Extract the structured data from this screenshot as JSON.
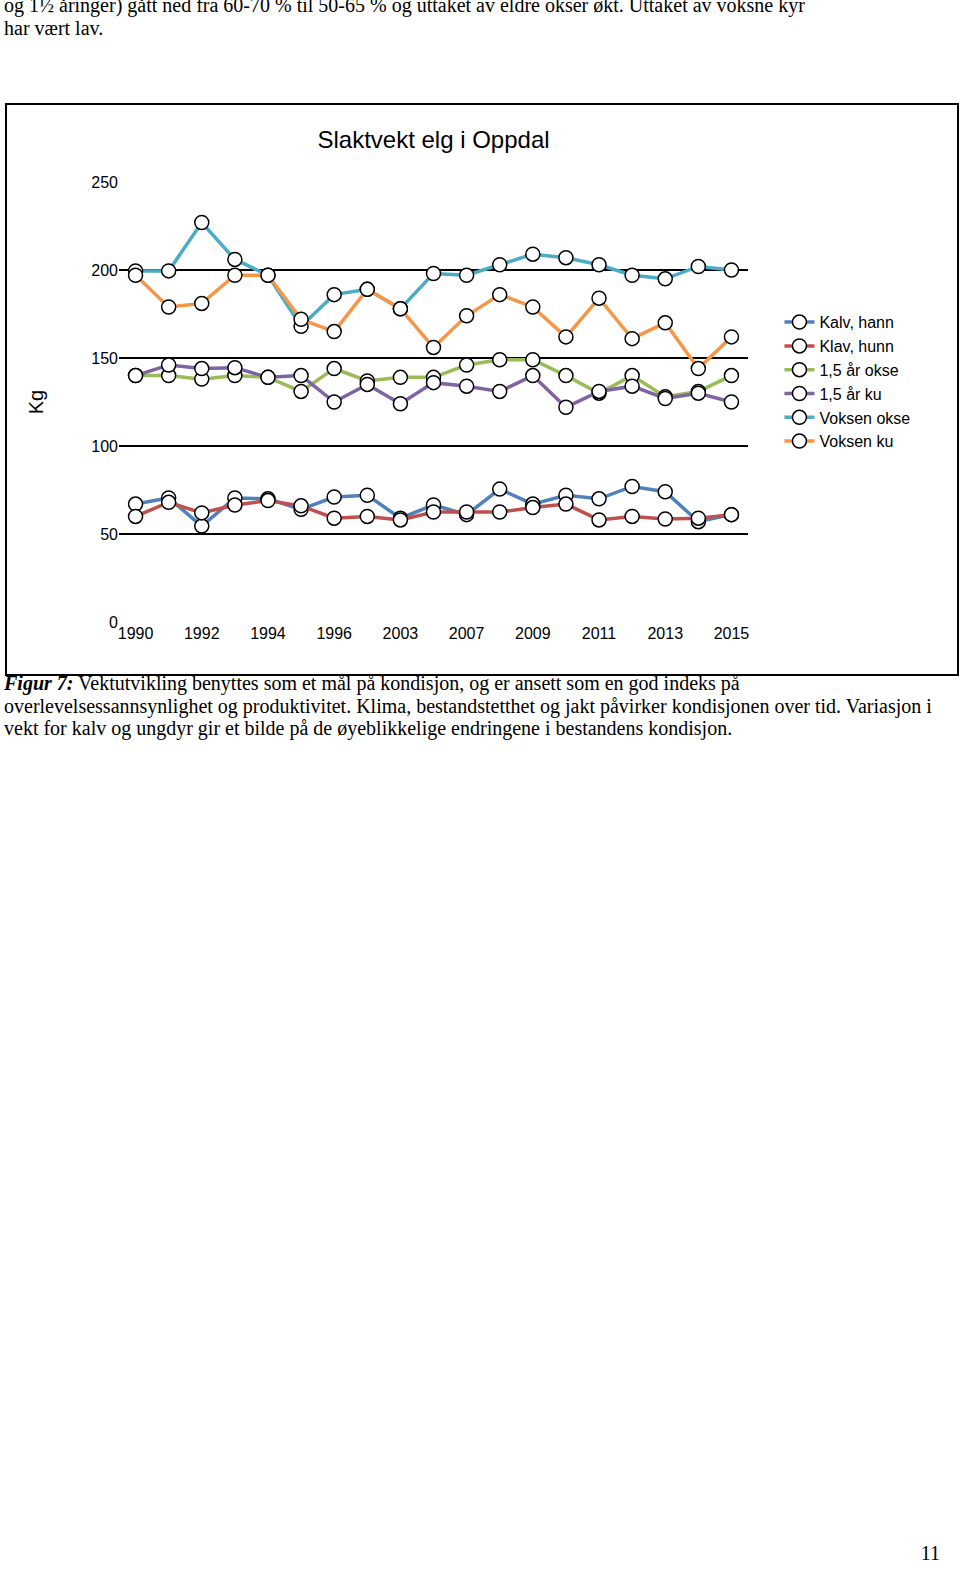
{
  "header_lines": [
    "og 1½ åringer) gått ned fra 60-70 % til 50-65 % og uttaket av eldre okser økt. Uttaket av voksne kyr",
    "har vært lav."
  ],
  "chart_data": {
    "type": "line",
    "title": "Slaktvekt elg i Oppdal",
    "y_label": "Kg",
    "categories": [
      "1990",
      null,
      "1992",
      null,
      "1994",
      null,
      "1996",
      null,
      "2003",
      null,
      "2007",
      null,
      "2009",
      null,
      "2011",
      null,
      "2013",
      null,
      "2015"
    ],
    "series": [
      {
        "name": "Kalv, hann",
        "color": "#4F81BD",
        "marker": "circle",
        "values": [
          67,
          70.5,
          54.5,
          70.5,
          70,
          64,
          71,
          72,
          59,
          66.5,
          61,
          75.5,
          67,
          72,
          70,
          77,
          74,
          57,
          61
        ]
      },
      {
        "name": "Klav, hunn",
        "color": "#C0504D",
        "marker": "circle",
        "values": [
          60,
          68,
          62,
          66.5,
          69,
          66,
          59,
          60,
          58,
          62.5,
          62.5,
          62.5,
          65,
          67,
          58,
          60,
          58.5,
          59,
          61
        ]
      },
      {
        "name": "1,5 år okse",
        "color": "#9BBB59",
        "marker": "circle",
        "values": [
          140,
          140,
          138,
          140,
          139,
          131,
          144,
          137,
          139,
          139,
          146,
          149,
          149,
          140,
          130,
          140,
          128,
          131,
          140
        ]
      },
      {
        "name": "1,5 år ku",
        "color": "#8064A2",
        "marker": "circle",
        "values": [
          140,
          146,
          144,
          144.5,
          139,
          140,
          125,
          135,
          124,
          136,
          134,
          131,
          140,
          122,
          131,
          134,
          127,
          130,
          125
        ]
      },
      {
        "name": "Voksen okse",
        "color": "#4BACC6",
        "marker": "circle",
        "values": [
          199.5,
          199.5,
          227,
          206,
          197,
          168,
          186,
          189,
          178,
          198,
          197,
          203,
          209,
          207,
          203,
          197,
          195,
          202,
          200
        ]
      },
      {
        "name": "Voksen ku",
        "color": "#F79646",
        "marker": "circle",
        "values": [
          197,
          179,
          181,
          197,
          197,
          172,
          165,
          189,
          178,
          156,
          174,
          186,
          179,
          162,
          184,
          161,
          170,
          144,
          162
        ]
      }
    ],
    "ylim": [
      0,
      250
    ],
    "yticks": [
      0,
      50,
      100,
      150,
      200,
      250
    ],
    "grid": true,
    "legend": "right"
  },
  "caption": {
    "label": "Figur 7:",
    "text": "Vektutvikling benyttes som et mål på kondisjon, og er ansett som en god indeks på overlevelsessannsynlighet og produktivitet. Klima, bestandstetthet og jakt påvirker kondisjonen over tid. Variasjon i vekt for kalv og ungdyr gir et bilde på de øyeblikkelige endringene i bestandens kondisjon."
  },
  "page_number": "11"
}
